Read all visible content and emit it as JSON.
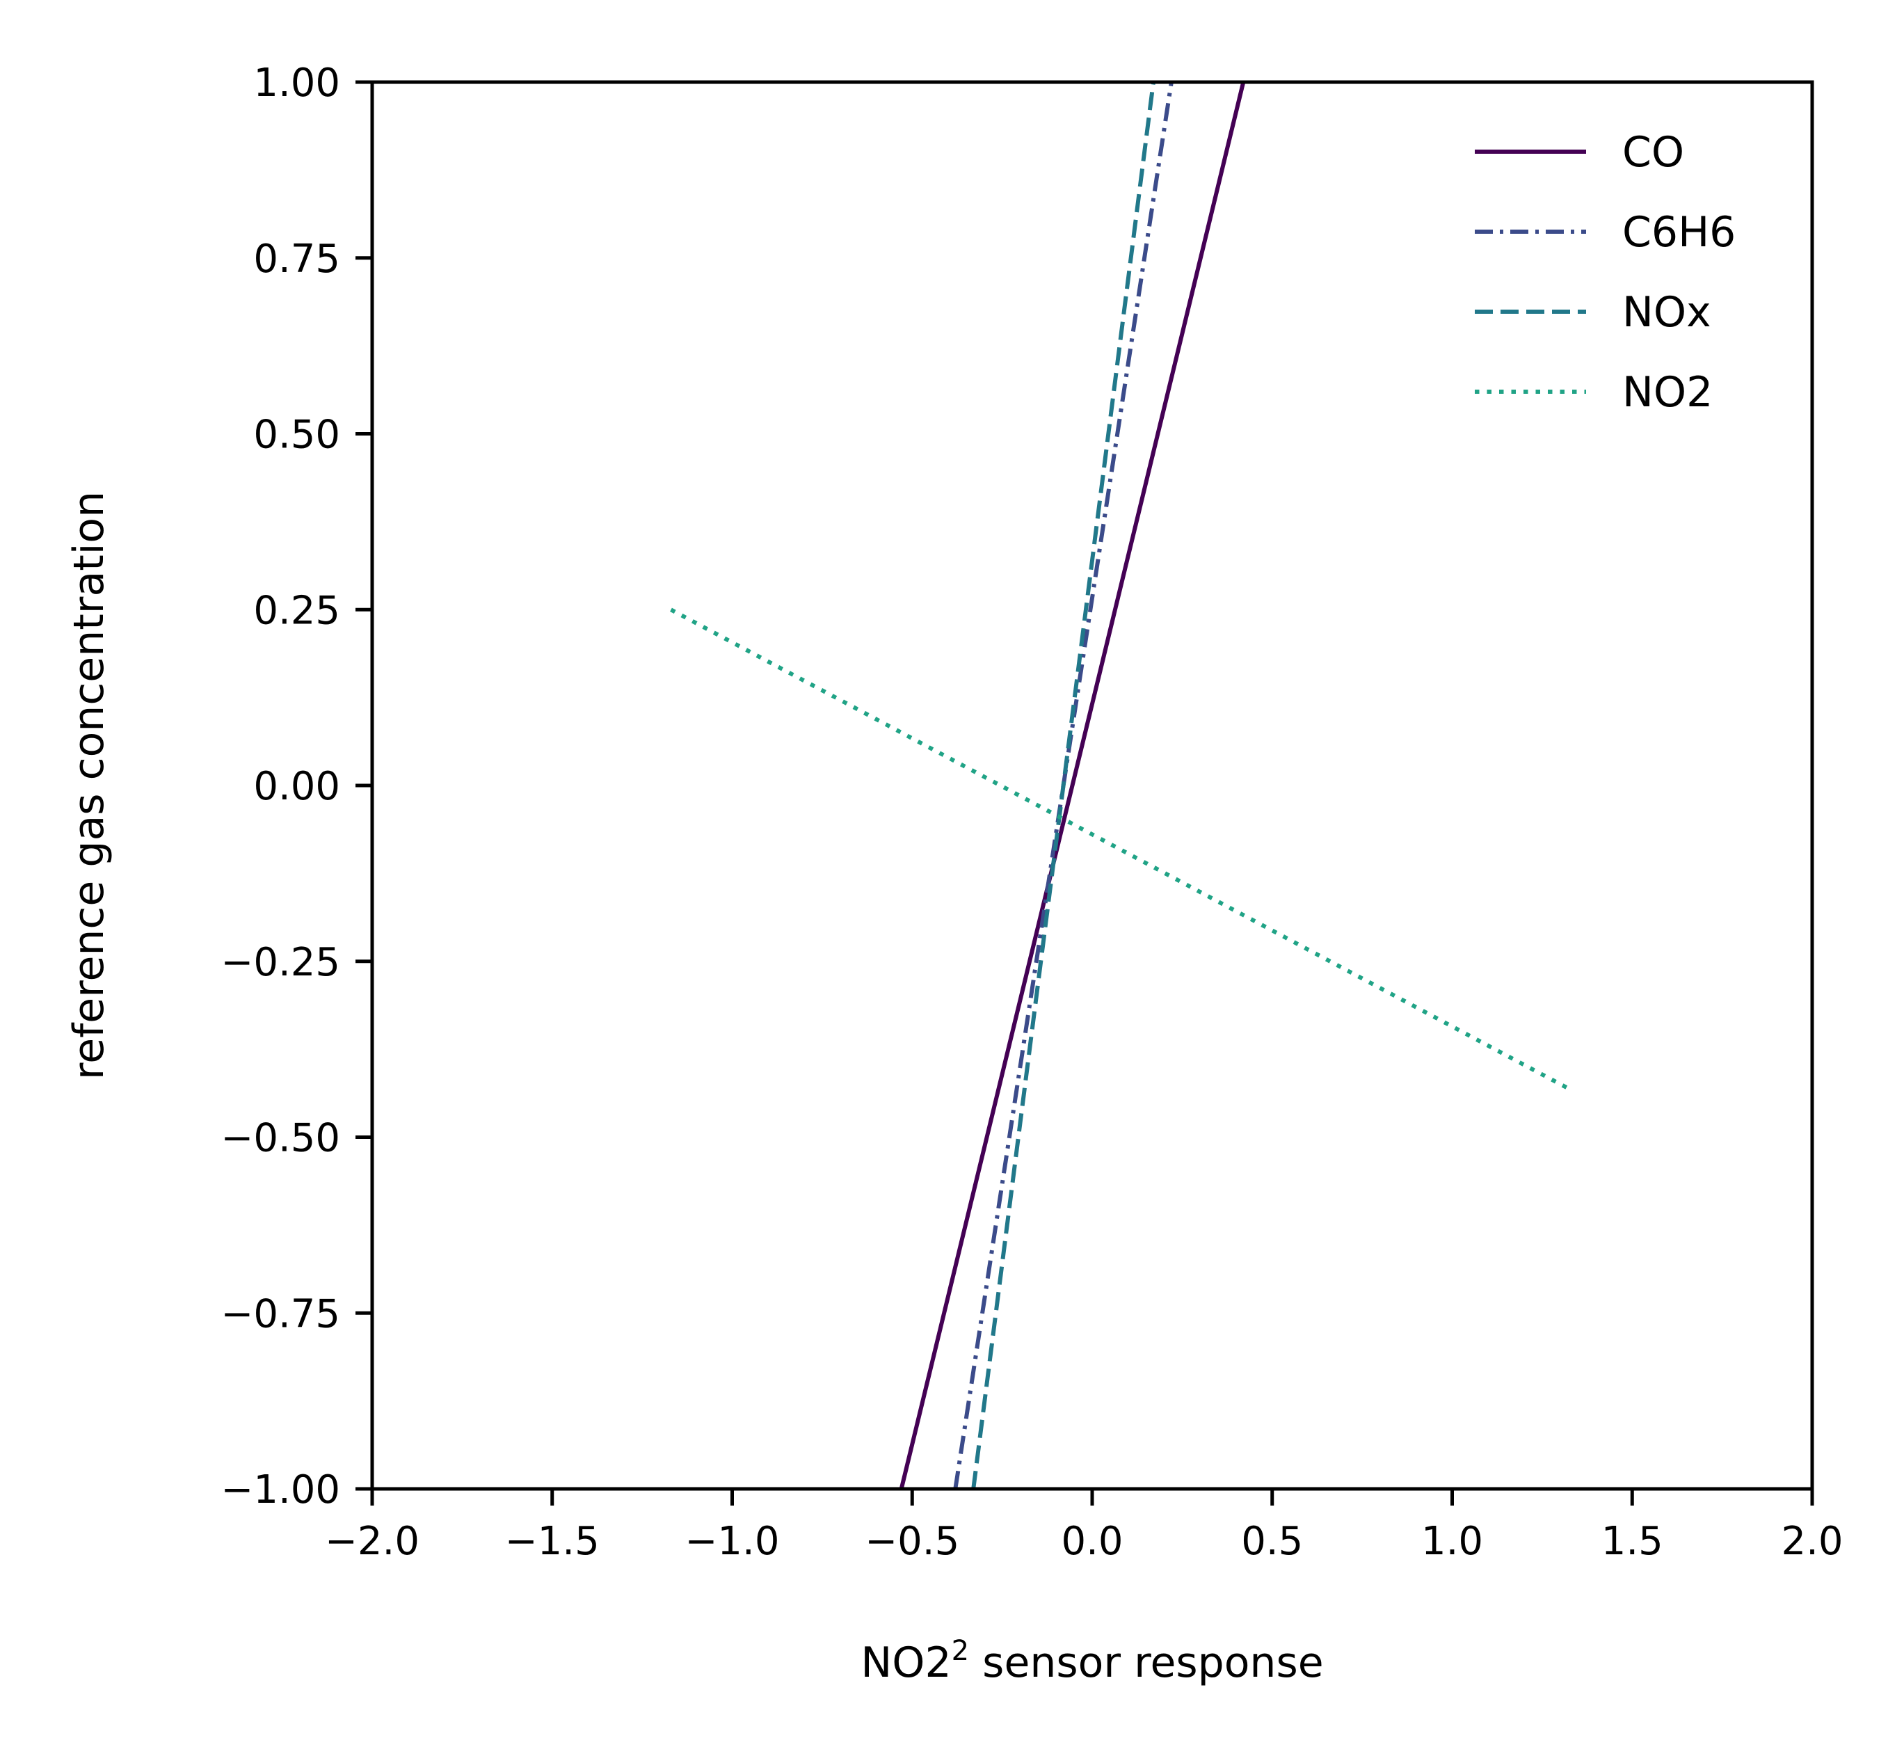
{
  "chart_data": {
    "type": "line",
    "title": "",
    "xlabel": "NO2",
    "xlabel_superscript": "2",
    "xlabel_suffix": " sensor response",
    "ylabel": "reference gas concentration",
    "xlim": [
      -2.0,
      2.0
    ],
    "ylim": [
      -1.0,
      1.0
    ],
    "xticks": [
      -2.0,
      -1.5,
      -1.0,
      -0.5,
      0.0,
      0.5,
      1.0,
      1.5,
      2.0
    ],
    "xtick_labels": [
      "−2.0",
      "−1.5",
      "−1.0",
      "−0.5",
      "0.0",
      "0.5",
      "1.0",
      "1.5",
      "2.0"
    ],
    "yticks": [
      -1.0,
      -0.75,
      -0.5,
      -0.25,
      0.0,
      0.25,
      0.5,
      0.75,
      1.0
    ],
    "ytick_labels": [
      "−1.00",
      "−0.75",
      "−0.50",
      "−0.25",
      "0.00",
      "0.25",
      "0.50",
      "0.75",
      "1.00"
    ],
    "grid": false,
    "legend_position": "top-right",
    "series": [
      {
        "name": "CO",
        "color": "#440154",
        "style": "solid",
        "x": [
          -0.53,
          0.42
        ],
        "y": [
          -1.0,
          1.0
        ]
      },
      {
        "name": "C6H6",
        "color": "#3b4b8a",
        "style": "dashdot",
        "x": [
          -0.38,
          0.22
        ],
        "y": [
          -1.0,
          1.0
        ]
      },
      {
        "name": "NOx",
        "color": "#21788a",
        "style": "dashed",
        "x": [
          -0.33,
          0.17
        ],
        "y": [
          -1.0,
          1.0
        ]
      },
      {
        "name": "NO2",
        "color": "#20a386",
        "style": "dotted",
        "x": [
          -1.17,
          1.32
        ],
        "y": [
          0.25,
          -0.43
        ]
      }
    ]
  }
}
